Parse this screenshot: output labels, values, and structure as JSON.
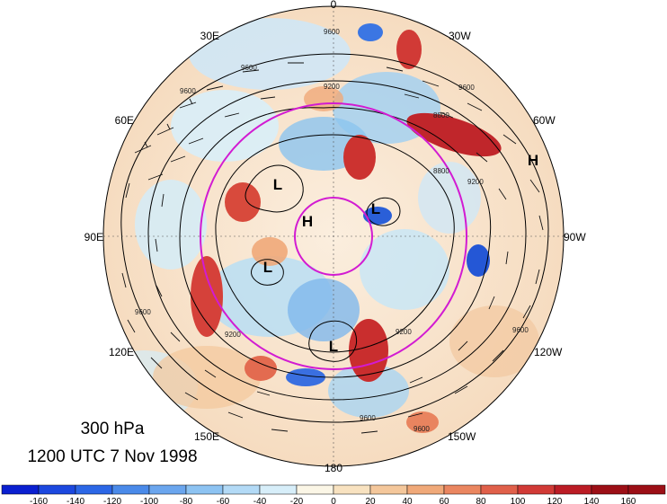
{
  "title": {
    "level": "300 hPa",
    "time": "1200 UTC 7 Nov 1998"
  },
  "longitude_labels": [
    {
      "key": "0",
      "text": "0"
    },
    {
      "key": "30W",
      "text": "30W"
    },
    {
      "key": "60W",
      "text": "60W"
    },
    {
      "key": "90W",
      "text": "90W"
    },
    {
      "key": "120W",
      "text": "120W"
    },
    {
      "key": "150W",
      "text": "150W"
    },
    {
      "key": "180",
      "text": "180"
    },
    {
      "key": "150E",
      "text": "150E"
    },
    {
      "key": "120E",
      "text": "120E"
    },
    {
      "key": "90E",
      "text": "90E"
    },
    {
      "key": "60E",
      "text": "60E"
    },
    {
      "key": "30E",
      "text": "30E"
    }
  ],
  "pressure_systems": [
    "H",
    "L",
    "H",
    "L",
    "L",
    "L"
  ],
  "contour_labels": [
    "9600",
    "9600",
    "9200",
    "8800",
    "9200",
    "8800",
    "9600",
    "9200",
    "9600",
    "9600",
    "9600",
    "9600",
    "9200",
    "9600"
  ],
  "colorbar": {
    "ticks": [
      "-160",
      "-140",
      "-120",
      "-100",
      "-80",
      "-60",
      "-40",
      "-20",
      "0",
      "20",
      "40",
      "60",
      "80",
      "100",
      "120",
      "140",
      "160"
    ],
    "colors": [
      "#0a1fd0",
      "#1c48df",
      "#2c67e6",
      "#4a8ae9",
      "#6ba6ee",
      "#8dc3f2",
      "#b3daf6",
      "#d7eef9",
      "#fbf6e6",
      "#f8e2c0",
      "#f4c79b",
      "#f0a979",
      "#ea8660",
      "#e0604a",
      "#d13a36",
      "#bb1c25",
      "#9c0f16"
    ]
  }
}
